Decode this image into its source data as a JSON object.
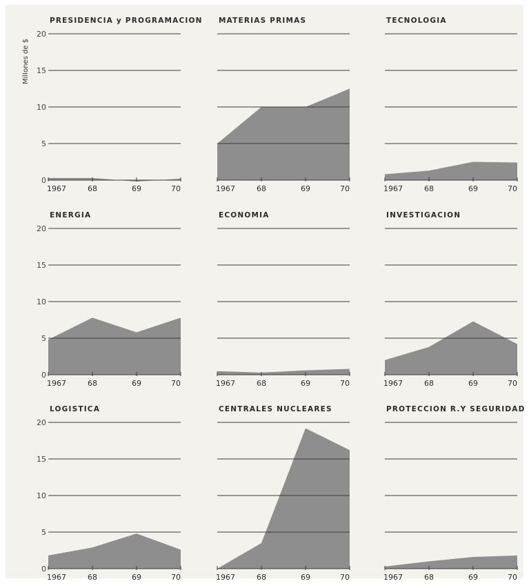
{
  "ylabel": "Millones de $",
  "chart_data": [
    {
      "type": "area",
      "title": "PRESIDENCIA y PROGRAMACION",
      "categories": [
        "1967",
        "68",
        "69",
        "70"
      ],
      "values": [
        0.3,
        0.3,
        -0.2,
        0.2
      ],
      "ylim": [
        0,
        20
      ],
      "yticks": [
        "0",
        "5",
        "10",
        "15",
        "20"
      ]
    },
    {
      "type": "area",
      "title": "MATERIAS PRIMAS",
      "categories": [
        "1967",
        "68",
        "69",
        "70"
      ],
      "values": [
        5,
        10,
        10,
        12.5
      ],
      "ylim": [
        0,
        20
      ]
    },
    {
      "type": "area",
      "title": "TECNOLOGIA",
      "categories": [
        "1967",
        "68",
        "69",
        "70"
      ],
      "values": [
        0.8,
        1.3,
        2.5,
        2.4
      ],
      "ylim": [
        0,
        20
      ]
    },
    {
      "type": "area",
      "title": "ENERGIA",
      "categories": [
        "1967",
        "68",
        "69",
        "70"
      ],
      "values": [
        4.8,
        7.8,
        5.8,
        7.8
      ],
      "ylim": [
        0,
        20
      ],
      "yticks": [
        "0",
        "5",
        "10",
        "15",
        "20"
      ]
    },
    {
      "type": "area",
      "title": "ECONOMIA",
      "categories": [
        "1967",
        "68",
        "69",
        "70"
      ],
      "values": [
        0.5,
        0.3,
        0.6,
        0.8
      ],
      "ylim": [
        0,
        20
      ]
    },
    {
      "type": "area",
      "title": "INVESTIGACION",
      "categories": [
        "1967",
        "68",
        "69",
        "70"
      ],
      "values": [
        2,
        3.8,
        7.3,
        4.2
      ],
      "ylim": [
        0,
        20
      ]
    },
    {
      "type": "area",
      "title": "LOGISTICA",
      "categories": [
        "1967",
        "68",
        "69",
        "70"
      ],
      "values": [
        1.8,
        2.9,
        4.8,
        2.6
      ],
      "ylim": [
        0,
        20
      ],
      "yticks": [
        "0",
        "5",
        "10",
        "15",
        "20"
      ]
    },
    {
      "type": "area",
      "title": "CENTRALES NUCLEARES",
      "categories": [
        "1967",
        "68",
        "69",
        "70"
      ],
      "values": [
        0,
        3.5,
        19.2,
        16.2
      ],
      "ylim": [
        0,
        20
      ]
    },
    {
      "type": "area",
      "title": "PROTECCION R.Y SEGURIDAD",
      "categories": [
        "1967",
        "68",
        "69",
        "70"
      ],
      "values": [
        0.3,
        1,
        1.6,
        1.8
      ],
      "ylim": [
        0,
        20
      ]
    }
  ]
}
